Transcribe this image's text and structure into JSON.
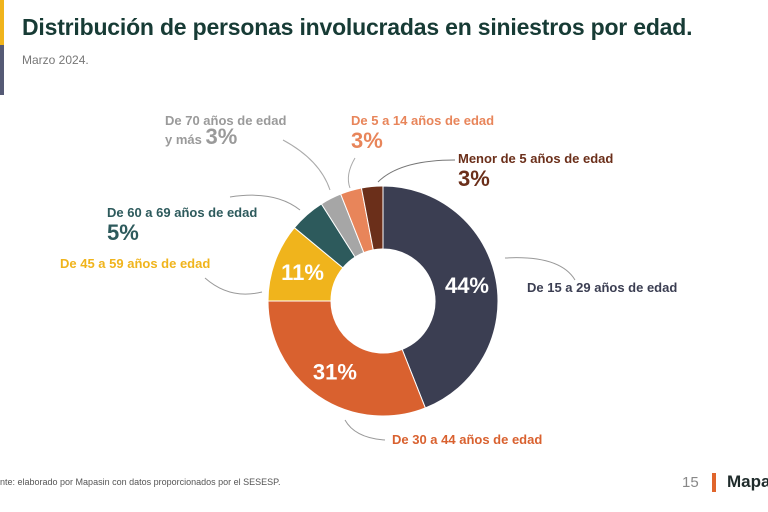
{
  "title": "Distribución de personas involucradas en siniestros por edad.",
  "subtitle": "Marzo 2024.",
  "chart_data": {
    "type": "pie",
    "donut": true,
    "title": "Distribución de personas involucradas en siniestros por edad.",
    "subtitle": "Marzo 2024.",
    "categories": [
      "De 15 a 29 años de edad",
      "De 30 a 44 años de edad",
      "De 45 a 59 años de edad",
      "De 60 a 69 años de edad",
      "De 70 años de edad y más",
      "De 5 a 14 años de edad",
      "Menor de 5 años de edad"
    ],
    "values": [
      44,
      31,
      11,
      5,
      3,
      3,
      3
    ],
    "labels": [
      "44%",
      "31%",
      "11%",
      "5%",
      "3%",
      "3%",
      "3%"
    ],
    "colors": [
      "#3b3e52",
      "#d9612f",
      "#f0b41c",
      "#2d5a5c",
      "#a6a6a6",
      "#e8855a",
      "#6b2f1a"
    ]
  },
  "footer": {
    "source": "nte: elaborado por Mapasin con datos proporcionados por el SESESP.",
    "page": "15",
    "brand": "Mapa"
  }
}
